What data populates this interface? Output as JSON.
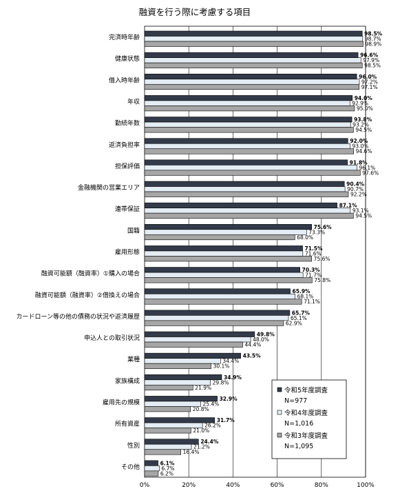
{
  "chart_data": {
    "type": "bar",
    "orientation": "horizontal",
    "title": "融資を行う際に考慮する項目",
    "categories": [
      "完済時年齢",
      "健康状態",
      "借入時年齢",
      "年収",
      "勤続年数",
      "返済負担率",
      "担保評価",
      "金融機関の営業エリア",
      "連帯保証",
      "国籍",
      "雇用形態",
      "融資可能額（融資率）①購入の場合",
      "融資可能額（融資率）②借換えの場合",
      "カードローン等の他の債務の状況や返済履歴",
      "申込人との取引状況",
      "業種",
      "家族構成",
      "雇用先の規模",
      "所有資産",
      "性別",
      "その他"
    ],
    "series": [
      {
        "name": "令和5年度調査",
        "n_label": "N=977",
        "color": "#333b4a",
        "values": [
          98.5,
          96.6,
          96.0,
          94.0,
          93.8,
          92.0,
          91.8,
          90.4,
          87.1,
          75.6,
          71.5,
          70.3,
          65.9,
          65.7,
          49.8,
          43.5,
          34.9,
          32.9,
          31.7,
          24.4,
          6.1
        ],
        "labels": [
          "98.5%",
          "96.6%",
          "96.0%",
          "94.0%",
          "93.8%",
          "92.0%",
          "91.8%",
          "90.4%",
          "87.1%",
          "75.6%",
          "71.5%",
          "70.3%",
          "65.9%",
          "65.7%",
          "49.8%",
          "43.5%",
          "34.9%",
          "32.9%",
          "31.7%",
          "24.4%",
          "6.1%"
        ]
      },
      {
        "name": "令和4年度調査",
        "n_label": "N=1,016",
        "color": "#e4ecf4",
        "values": [
          98.7,
          97.9,
          97.2,
          92.9,
          93.2,
          93.0,
          96.1,
          90.7,
          93.1,
          73.3,
          71.6,
          71.7,
          68.1,
          65.1,
          48.0,
          34.4,
          29.8,
          25.4,
          26.2,
          21.2,
          6.7
        ],
        "labels": [
          "98.7%",
          "97.9%",
          "97.2%",
          "92.9%",
          "93.2%",
          "93.0%",
          "96.1%",
          "90.7%",
          "93.1%",
          "73.3%",
          "71.6%",
          "71.7%",
          "68.1%",
          "65.1%",
          "48.0%",
          "34.4%",
          "29.8%",
          "25.4%",
          "26.2%",
          "21.2%",
          "6.7%"
        ]
      },
      {
        "name": "令和3年度調査",
        "n_label": "N=1,095",
        "color": "#a6a6a6",
        "values": [
          98.9,
          98.5,
          97.1,
          95.0,
          94.5,
          94.6,
          97.6,
          92.2,
          94.5,
          68.0,
          75.6,
          75.8,
          71.1,
          62.9,
          44.4,
          30.1,
          21.9,
          20.8,
          21.0,
          16.4,
          6.2
        ],
        "labels": [
          "98.9%",
          "98.5%",
          "97.1%",
          "95.0%",
          "94.5%",
          "94.6%",
          "97.6%",
          "92.2%",
          "94.5%",
          "68.0%",
          "75.6%",
          "75.8%",
          "71.1%",
          "62.9%",
          "44.4%",
          "30.1%",
          "21.9%",
          "20.8%",
          "21.0%",
          "16.4%",
          "6.2%"
        ]
      }
    ],
    "xlim": [
      0,
      100
    ],
    "x_ticks": [
      "0%",
      "20%",
      "40%",
      "60%",
      "80%",
      "100%"
    ],
    "grid": true,
    "legend_position": "bottom-right"
  }
}
